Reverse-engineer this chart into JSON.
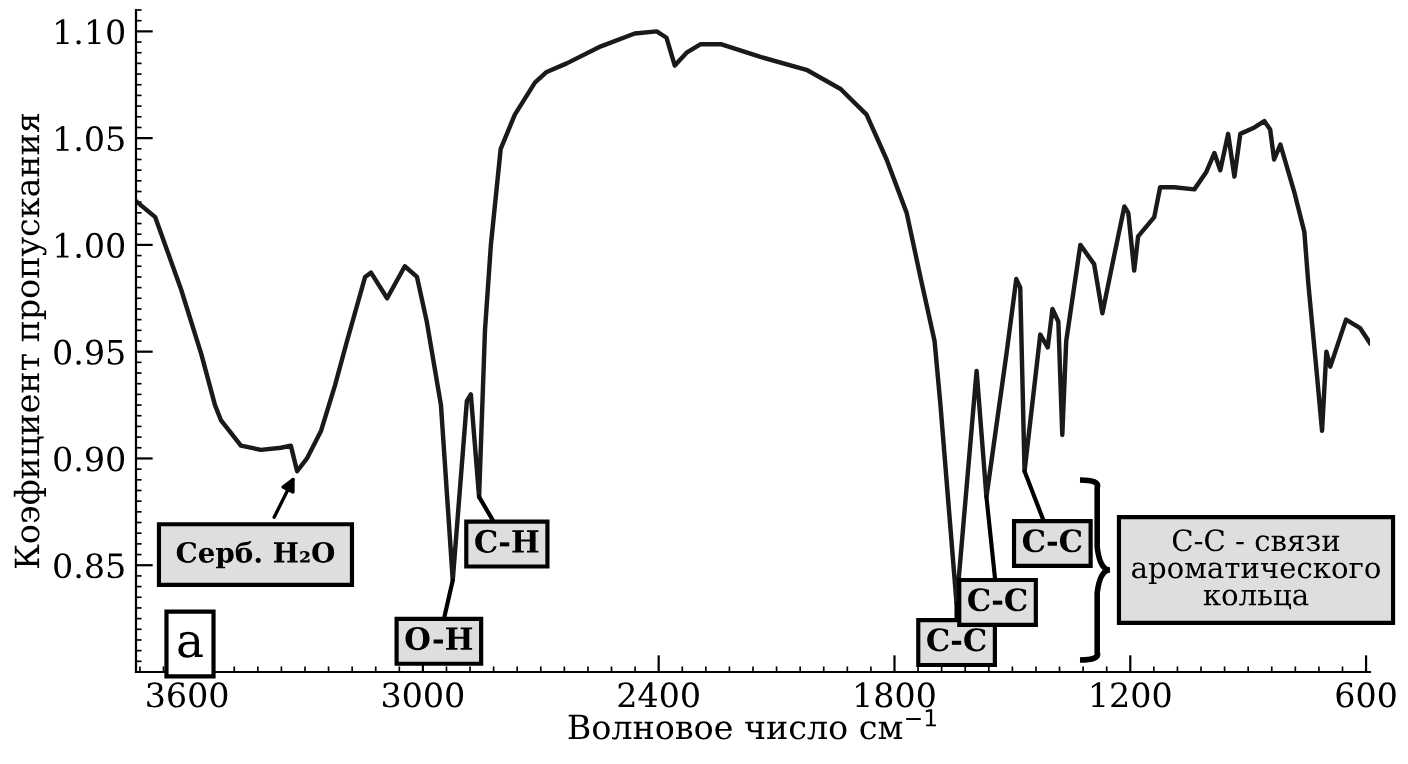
{
  "chart_data": {
    "type": "line",
    "xlabel": "Волновое число см$^{−1}$",
    "ylabel": "Коэфициент пропускания",
    "xlim": [
      3730,
      590
    ],
    "ylim": [
      0.8,
      1.11
    ],
    "xticks": [
      3600,
      3000,
      2400,
      1800,
      1200,
      600
    ],
    "yticks": [
      {
        "value": 0.85,
        "label": "0.85"
      },
      {
        "value": 0.9,
        "label": "0.90"
      },
      {
        "value": 0.95,
        "label": "0.95"
      },
      {
        "value": 1.0,
        "label": "1.00"
      },
      {
        "value": 1.05,
        "label": "1.05"
      },
      {
        "value": 1.1,
        "label": "1.10"
      }
    ],
    "grid": false,
    "legend": false,
    "marker": "none",
    "line_style": "solid",
    "series": [
      {
        "color": "#1a1a1a",
        "x": [
          3727,
          3681,
          3615,
          3564,
          3529,
          3514,
          3463,
          3412,
          3361,
          3336,
          3320,
          3295,
          3259,
          3224,
          3193,
          3147,
          3132,
          3091,
          3046,
          3015,
          2990,
          2954,
          2924,
          2888,
          2878,
          2857,
          2842,
          2827,
          2802,
          2766,
          2715,
          2685,
          2634,
          2547,
          2461,
          2405,
          2380,
          2359,
          2329,
          2293,
          2242,
          2141,
          2024,
          1937,
          1871,
          1820,
          1769,
          1734,
          1698,
          1683,
          1642,
          1591,
          1566,
          1515,
          1490,
          1480,
          1469,
          1429,
          1410,
          1398,
          1383,
          1373,
          1363,
          1327,
          1292,
          1271,
          1241,
          1215,
          1205,
          1190,
          1180,
          1139,
          1124,
          1088,
          1037,
          1007,
          986,
          971,
          951,
          935,
          920,
          884,
          859,
          844,
          834,
          818,
          783,
          757,
          747,
          727,
          712,
          701,
          691,
          651,
          615,
          590
        ],
        "values": [
          1.02,
          1.013,
          0.979,
          0.949,
          0.925,
          0.918,
          0.906,
          0.904,
          0.905,
          0.906,
          0.894,
          0.9,
          0.913,
          0.934,
          0.955,
          0.985,
          0.987,
          0.975,
          0.99,
          0.985,
          0.964,
          0.925,
          0.843,
          0.927,
          0.93,
          0.882,
          0.96,
          1.0,
          1.045,
          1.061,
          1.076,
          1.081,
          1.085,
          1.093,
          1.099,
          1.1,
          1.097,
          1.084,
          1.09,
          1.094,
          1.094,
          1.088,
          1.082,
          1.073,
          1.061,
          1.04,
          1.015,
          0.985,
          0.955,
          0.925,
          0.832,
          0.941,
          0.882,
          0.949,
          0.984,
          0.98,
          0.894,
          0.958,
          0.952,
          0.97,
          0.964,
          0.911,
          0.955,
          1.0,
          0.991,
          0.968,
          0.995,
          1.018,
          1.015,
          0.988,
          1.004,
          1.013,
          1.027,
          1.027,
          1.026,
          1.034,
          1.043,
          1.035,
          1.052,
          1.032,
          1.052,
          1.055,
          1.058,
          1.054,
          1.04,
          1.047,
          1.025,
          1.006,
          0.982,
          0.943,
          0.913,
          0.95,
          0.943,
          0.965,
          0.961,
          0.954
        ]
      }
    ],
    "annotations": [
      {
        "text": "Серб. H₂O",
        "x": 3320,
        "y": 0.894
      },
      {
        "text": "O-H",
        "x": 2924,
        "y": 0.843
      },
      {
        "text": "C-H",
        "x": 2857,
        "y": 0.882
      },
      {
        "text": "C-C",
        "x": 1642,
        "y": 0.832
      },
      {
        "text": "C-C",
        "x": 1566,
        "y": 0.882
      },
      {
        "text": "C-C",
        "x": 1469,
        "y": 0.894
      },
      "C-C - связи\nароматического\nкольца",
      "а"
    ]
  }
}
